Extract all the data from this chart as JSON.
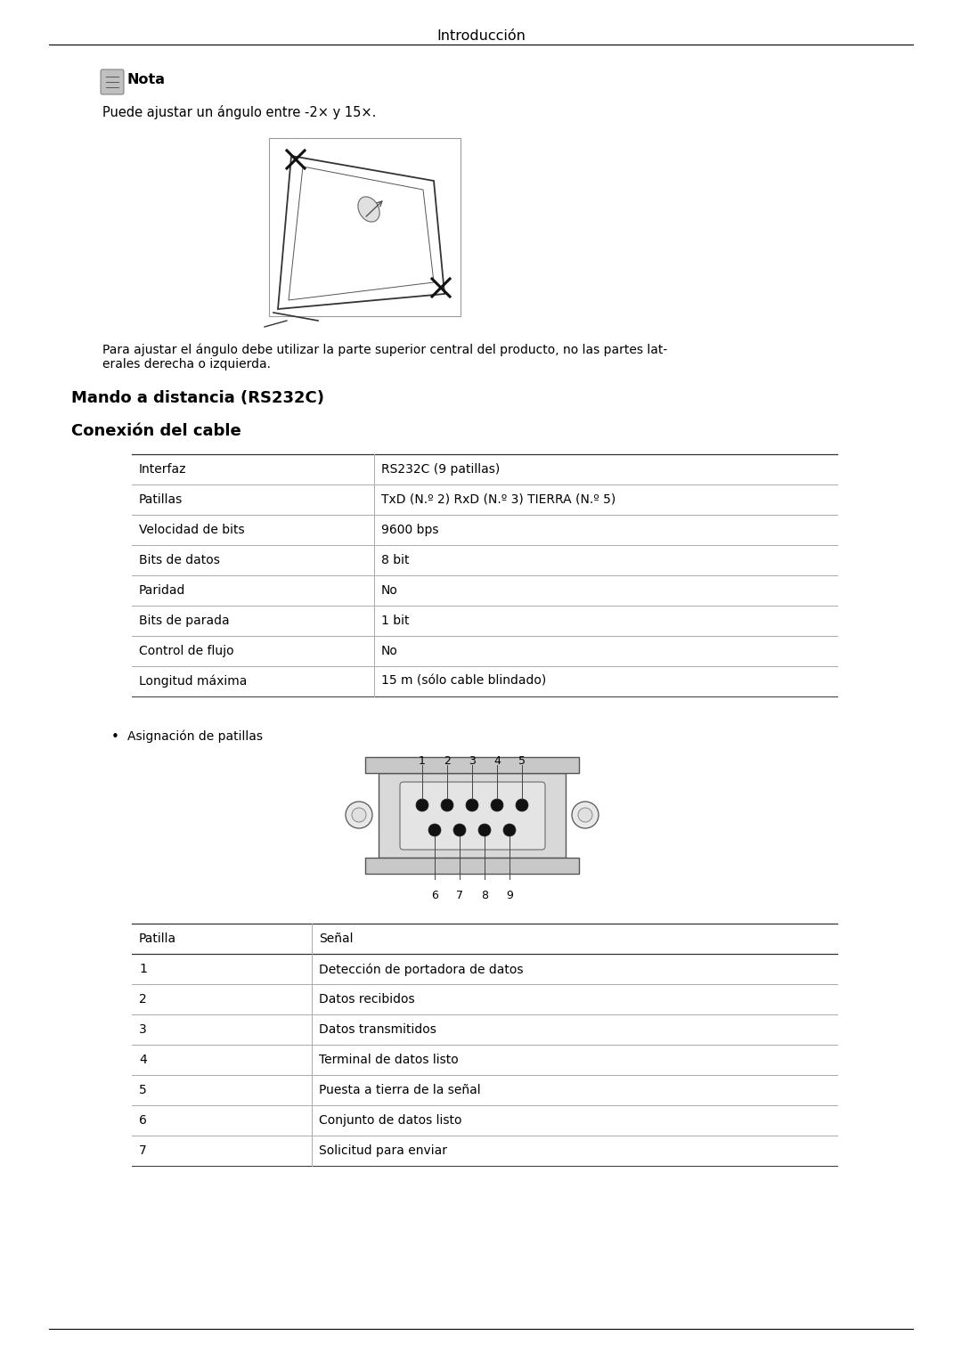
{
  "bg_color": "#ffffff",
  "header_text": "Introducción",
  "note_title": "Nota",
  "note_body": "Puede ajustar un ángulo entre -2× y 15×.",
  "para_text": "Para ajustar el ángulo debe utilizar la parte superior central del producto, no las partes lat-\nerales derecha o izquierda.",
  "section1_title": "Mando a distancia (RS232C)",
  "section2_title": "Conexión del cable",
  "table1_rows": [
    [
      "Interfaz",
      "RS232C (9 patillas)"
    ],
    [
      "Patillas",
      "TxD (N.º 2) RxD (N.º 3) TIERRA (N.º 5)"
    ],
    [
      "Velocidad de bits",
      "9600 bps"
    ],
    [
      "Bits de datos",
      "8 bit"
    ],
    [
      "Paridad",
      "No"
    ],
    [
      "Bits de parada",
      "1 bit"
    ],
    [
      "Control de flujo",
      "No"
    ],
    [
      "Longitud máxima",
      "15 m (sólo cable blindado)"
    ]
  ],
  "bullet_text": "Asignación de patillas",
  "pin_labels_top": [
    "1",
    "2",
    "3",
    "4",
    "5"
  ],
  "pin_labels_bottom": [
    "6",
    "7",
    "8",
    "9"
  ],
  "table2_header": [
    "Patilla",
    "Señal"
  ],
  "table2_rows": [
    [
      "1",
      "Detección de portadora de datos"
    ],
    [
      "2",
      "Datos recibidos"
    ],
    [
      "3",
      "Datos transmitidos"
    ],
    [
      "4",
      "Terminal de datos listo"
    ],
    [
      "5",
      "Puesta a tierra de la señal"
    ],
    [
      "6",
      "Conjunto de datos listo"
    ],
    [
      "7",
      "Solicitud para enviar"
    ]
  ],
  "text_color": "#000000",
  "table_line_color": "#aaaaaa",
  "table_header_line_color": "#000000"
}
